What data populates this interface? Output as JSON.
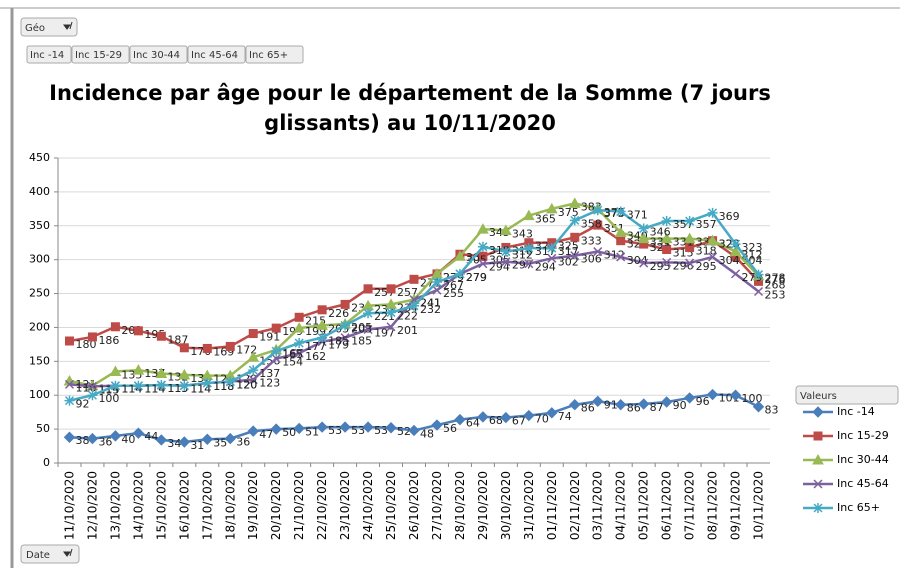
{
  "pivot": {
    "filter_field": "Géo",
    "value_fields": [
      "Inc -14",
      "Inc 15-29",
      "Inc 30-44",
      "Inc 45-64",
      "Inc 65+"
    ],
    "axis_field": "Date"
  },
  "chart_data": {
    "type": "line",
    "title": "Incidence par âge pour le département de la Somme (7 jours glissants) au 10/11/2020",
    "legend_title": "Valeurs",
    "legend": "right",
    "categories": [
      "11/10/2020",
      "12/10/2020",
      "13/10/2020",
      "14/10/2020",
      "15/10/2020",
      "16/10/2020",
      "17/10/2020",
      "18/10/2020",
      "19/10/2020",
      "20/10/2020",
      "21/10/2020",
      "22/10/2020",
      "23/10/2020",
      "24/10/2020",
      "25/10/2020",
      "26/10/2020",
      "27/10/2020",
      "28/10/2020",
      "29/10/2020",
      "30/10/2020",
      "31/10/2020",
      "01/11/2020",
      "02/11/2020",
      "03/11/2020",
      "04/11/2020",
      "05/11/2020",
      "06/11/2020",
      "07/11/2020",
      "08/11/2020",
      "09/11/2020",
      "10/11/2020"
    ],
    "ylim": [
      0,
      450
    ],
    "yticks": [
      0,
      50,
      100,
      150,
      200,
      250,
      300,
      350,
      400,
      450
    ],
    "grid": true,
    "series": [
      {
        "name": "Inc -14",
        "color": "#4a7ebb",
        "marker": "diamond",
        "values": [
          38,
          36,
          40,
          44,
          34,
          31,
          35,
          36,
          47,
          50,
          51,
          53,
          53,
          53,
          52,
          48,
          56,
          64,
          68,
          67,
          70,
          74,
          86,
          91,
          86,
          87,
          90,
          96,
          101,
          100,
          83
        ]
      },
      {
        "name": "Inc 15-29",
        "color": "#be4b48",
        "marker": "square",
        "values": [
          180,
          186,
          201,
          195,
          187,
          170,
          169,
          172,
          191,
          199,
          215,
          226,
          234,
          257,
          257,
          271,
          279,
          308,
          305,
          318,
          325,
          325,
          333,
          351,
          328,
          323,
          315,
          318,
          328,
          304,
          268
        ]
      },
      {
        "name": "Inc 30-44",
        "color": "#98b954",
        "marker": "triangle",
        "values": [
          121,
          114,
          135,
          137,
          132,
          130,
          129,
          129,
          156,
          167,
          199,
          203,
          205,
          232,
          234,
          241,
          279,
          305,
          345,
          343,
          365,
          375,
          383,
          375,
          340,
          331,
          331,
          331,
          328,
          312,
          276
        ]
      },
      {
        "name": "Inc 45-64",
        "color": "#7d60a0",
        "marker": "x",
        "values": [
          116,
          113,
          114,
          114,
          115,
          114,
          118,
          120,
          123,
          154,
          162,
          179,
          185,
          197,
          201,
          241,
          255,
          279,
          294,
          297,
          294,
          302,
          306,
          312,
          304,
          295,
          296,
          295,
          304,
          279,
          253
        ]
      },
      {
        "name": "Inc 65+",
        "color": "#46aac5",
        "marker": "star",
        "values": [
          92,
          100,
          114,
          114,
          115,
          114,
          118,
          120,
          137,
          165,
          177,
          185,
          203,
          221,
          222,
          232,
          267,
          279,
          319,
          312,
          317,
          317,
          358,
          373,
          371,
          346,
          357,
          357,
          369,
          323,
          278
        ]
      }
    ]
  }
}
